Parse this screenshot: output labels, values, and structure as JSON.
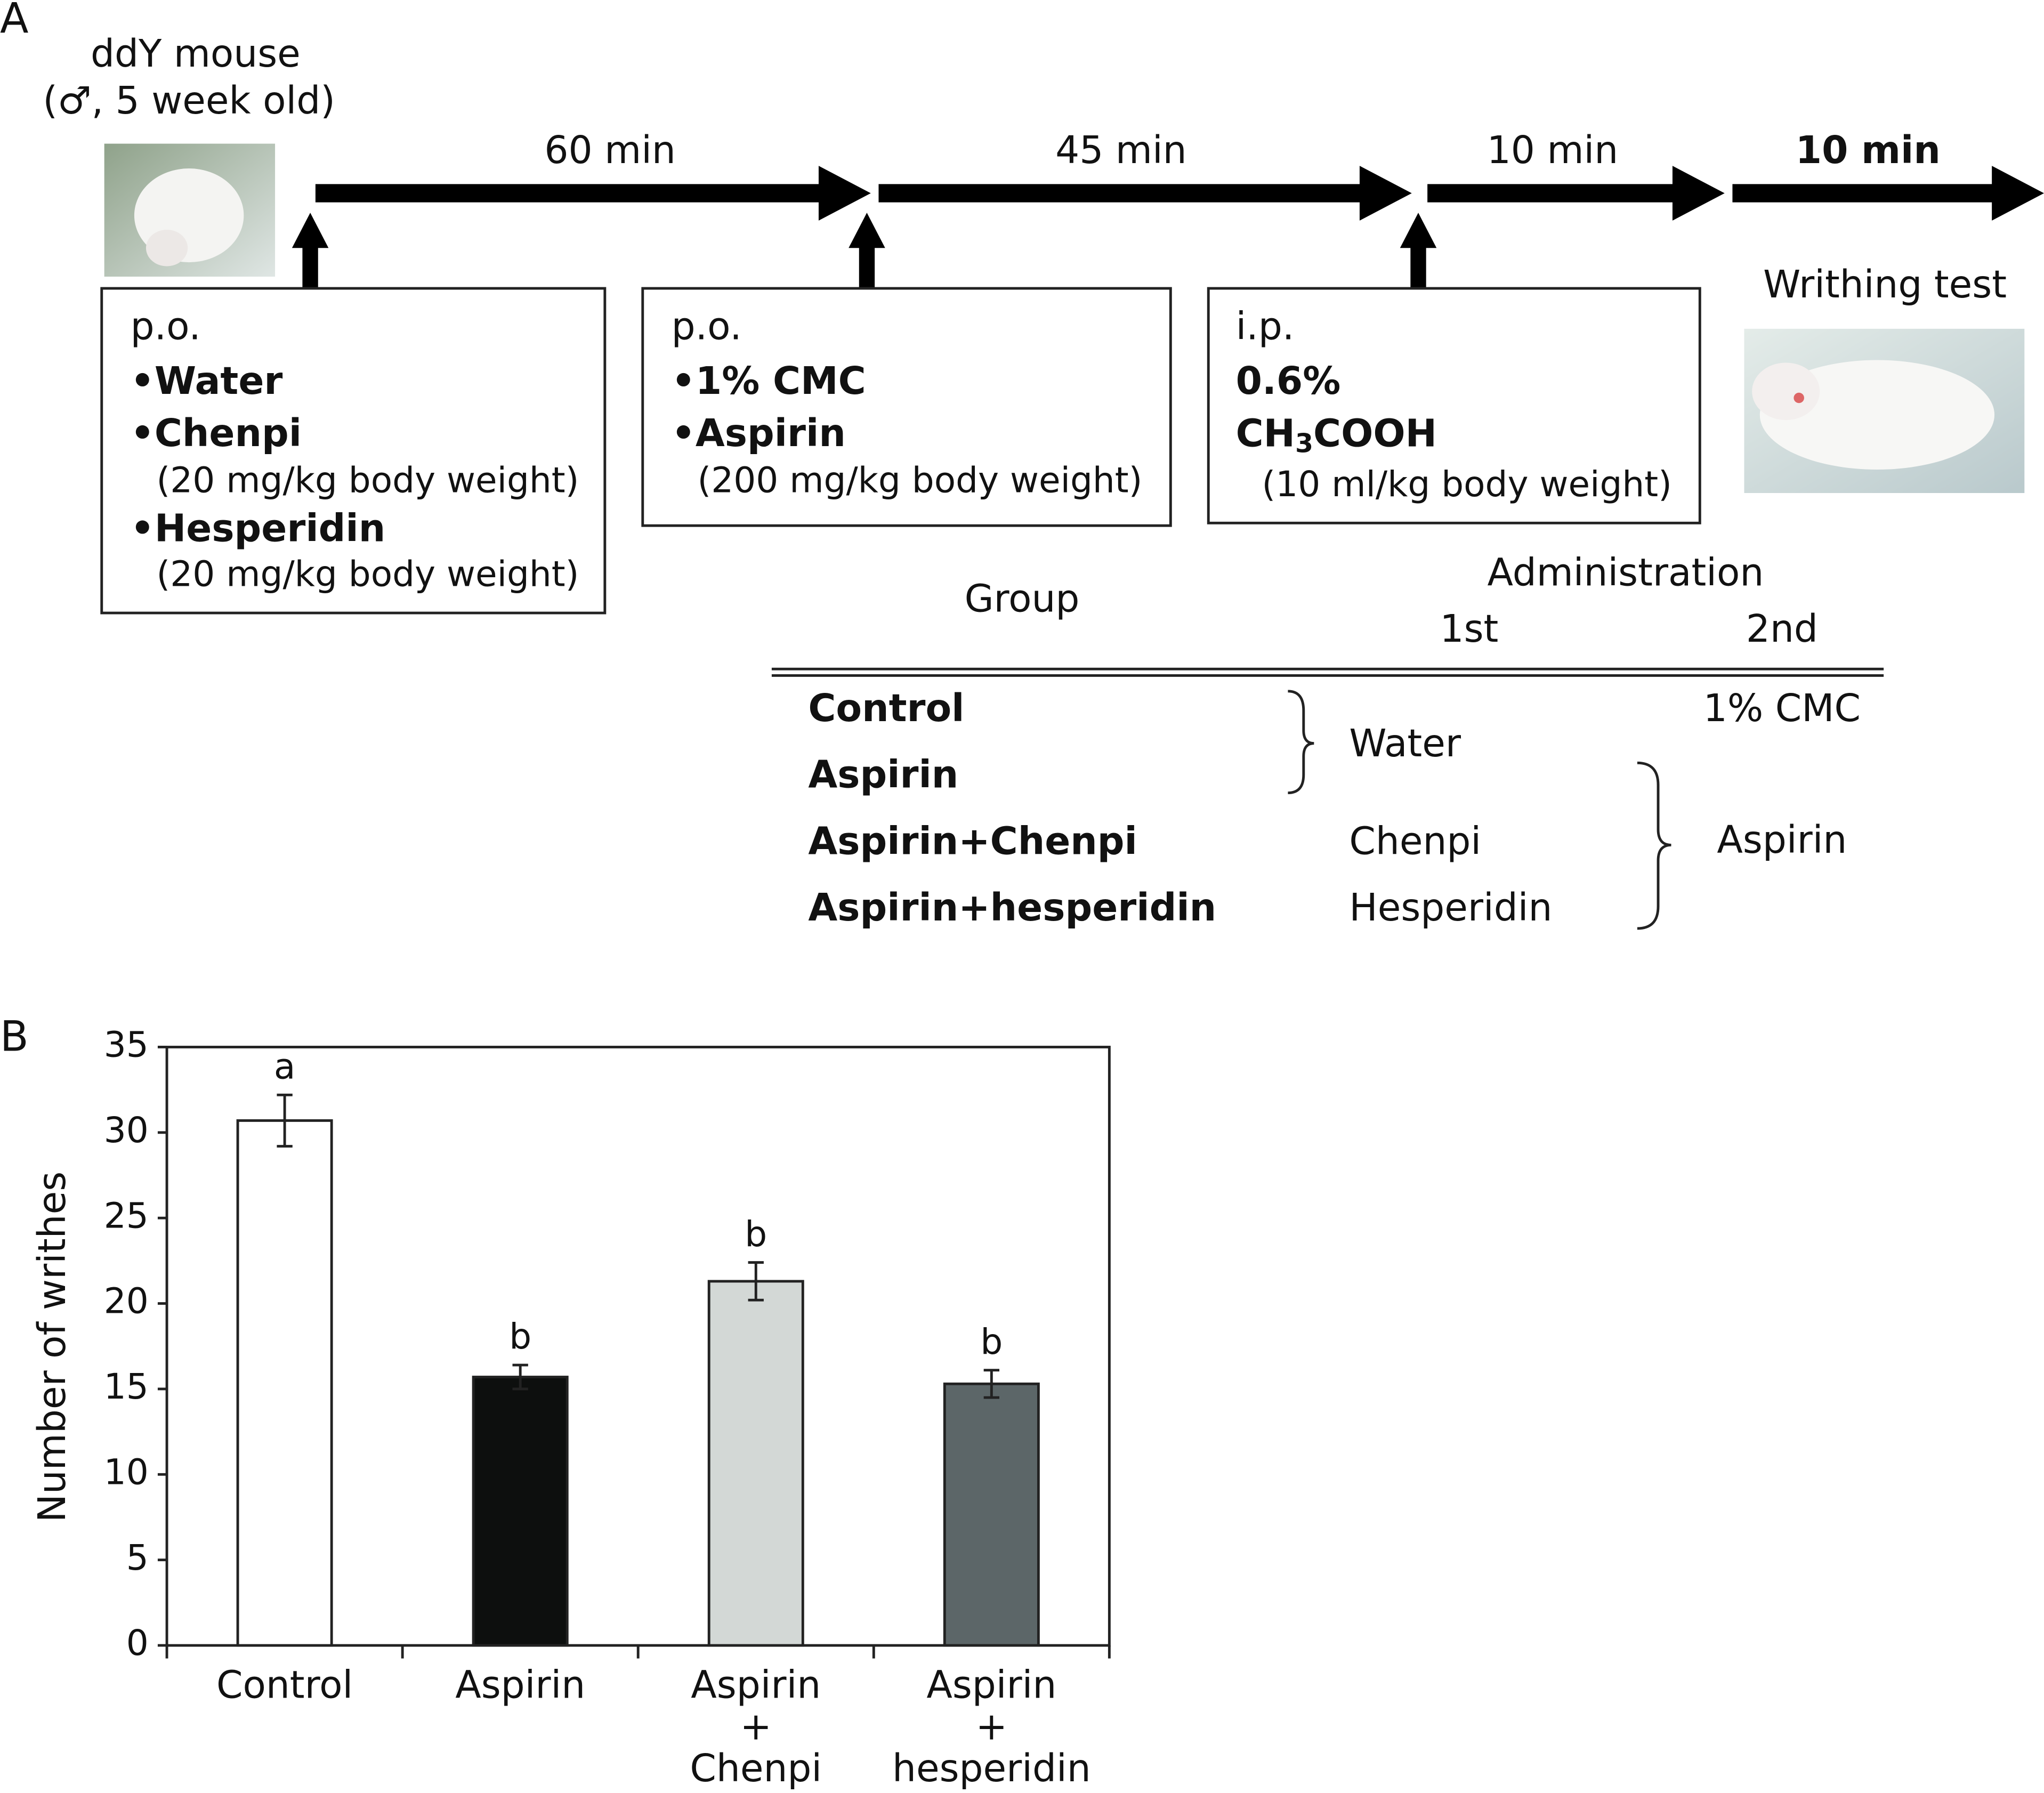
{
  "panel_a": {
    "label": "A",
    "mouse": [
      "ddY mouse",
      "(♂, 5 week old)"
    ],
    "intervals": [
      "60 min",
      "45 min",
      "10 min",
      "10 min"
    ],
    "test": "Writhing test",
    "box1": {
      "route": "p.o.",
      "water": "•Water",
      "chenpi": "•Chenpi",
      "dose1": "(20 mg/kg body weight)",
      "hesperidin": "•Hesperidin",
      "dose2": "(20 mg/kg body weight)"
    },
    "box2": {
      "route": "p.o.",
      "cmc": "•1% CMC",
      "aspirin": "•Aspirin",
      "dose": "(200 mg/kg body weight)"
    },
    "box3": {
      "route": "i.p.",
      "conc": "0.6%",
      "formula": [
        "CH",
        "3",
        "COOH"
      ],
      "dose": "(10 ml/kg body weight)"
    },
    "table": {
      "group": "Group",
      "administration": "Administration",
      "first": "1st",
      "second": "2nd",
      "rows": [
        "Control",
        "Aspirin",
        "Aspirin+Chenpi",
        "Aspirin+hesperidin"
      ],
      "first_col": [
        "Water",
        "Chenpi",
        "Hesperidin"
      ],
      "second_col": [
        "1% CMC",
        "Aspirin"
      ]
    }
  },
  "chart_data": {
    "type": "bar",
    "panel_label": "B",
    "categories": [
      "Control",
      "Aspirin",
      "Aspirin\n+\nChenpi",
      "Aspirin\n+\nhesperidin"
    ],
    "values": [
      30.7,
      15.7,
      21.3,
      15.3
    ],
    "errors": [
      1.5,
      0.7,
      1.1,
      0.8
    ],
    "annotations": [
      "a",
      "b",
      "b",
      "b"
    ],
    "colors": [
      "#ffffff",
      "#0d0f0e",
      "#d3d8d6",
      "#5c6668"
    ],
    "ylabel": "Number of writhes",
    "ylim": [
      0,
      35
    ],
    "yticks": [
      0,
      5,
      10,
      15,
      20,
      25,
      30,
      35
    ]
  }
}
